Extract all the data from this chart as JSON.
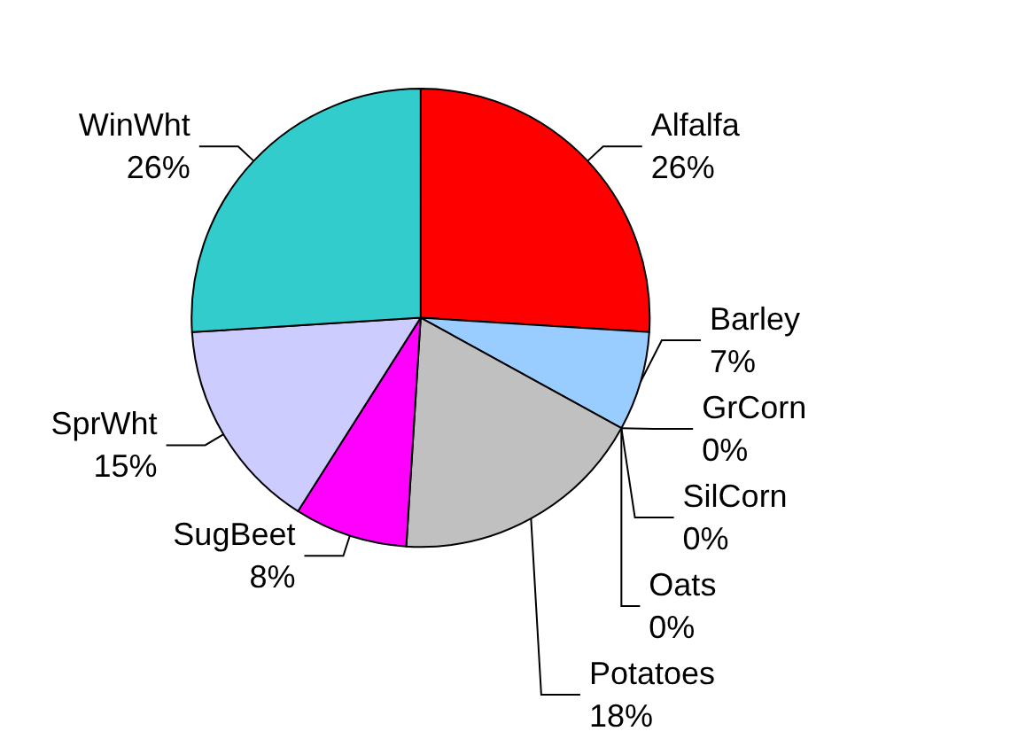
{
  "chart_data": {
    "type": "pie",
    "categories": [
      "Alfalfa",
      "Barley",
      "GrCorn",
      "SilCorn",
      "Oats",
      "Potatoes",
      "SugBeet",
      "SprWht",
      "WinWht"
    ],
    "values": [
      26,
      7,
      0,
      0,
      0,
      18,
      8,
      15,
      26
    ],
    "colors": [
      "#ff0000",
      "#99ccff",
      "#000080",
      "#ff00ff",
      "#ffff00",
      "#c0c0c0",
      "#ff00ff",
      "#ccccff",
      "#33cccc"
    ],
    "value_labels": [
      "26%",
      "7%",
      "0%",
      "0%",
      "0%",
      "18%",
      "8%",
      "15%",
      "26%"
    ]
  }
}
